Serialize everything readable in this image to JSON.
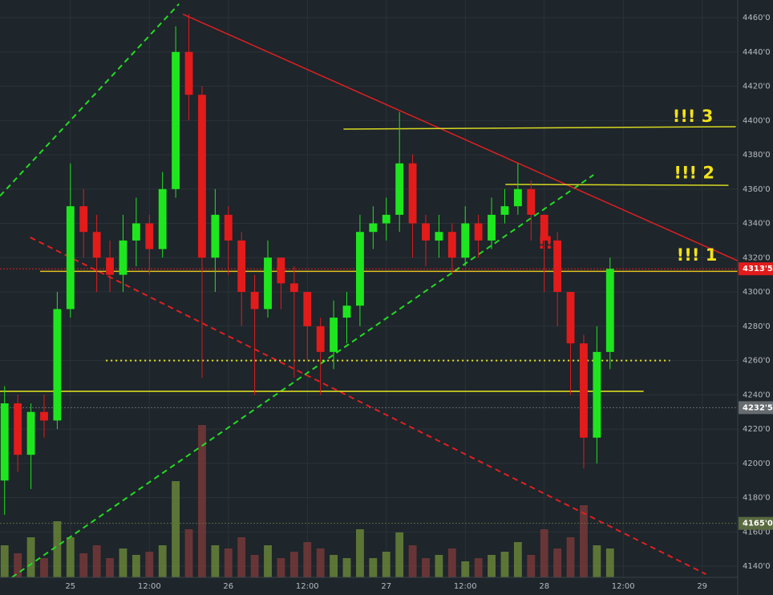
{
  "chart_data": {
    "type": "candlestick",
    "background": "#1e252b",
    "grid": true,
    "grid_color": "#2b3339",
    "up_color": "#1ee61e",
    "down_color": "#e31b1b",
    "volume_color_up": "#6b8a3a",
    "volume_color_down": "#7a3a3a",
    "xlim": [
      -10.7,
      101.4
    ],
    "ylim": [
      4133.5,
      4470.3
    ],
    "vlim": [
      0,
      100
    ],
    "xticks": [
      {
        "value": 0,
        "label": "25"
      },
      {
        "value": 12,
        "label": "12:00"
      },
      {
        "value": 24,
        "label": "26"
      },
      {
        "value": 36,
        "label": "12:00"
      },
      {
        "value": 48,
        "label": "27"
      },
      {
        "value": 60,
        "label": "12:00"
      },
      {
        "value": 72,
        "label": "28"
      },
      {
        "value": 84,
        "label": "12:00"
      },
      {
        "value": 96,
        "label": "29"
      }
    ],
    "yticks": [
      {
        "value": 4140,
        "label": "4140'0"
      },
      {
        "value": 4160,
        "label": "4160'0"
      },
      {
        "value": 4180,
        "label": "4180'0"
      },
      {
        "value": 4200,
        "label": "4200'0"
      },
      {
        "value": 4220,
        "label": "4220'0"
      },
      {
        "value": 4240,
        "label": "4240'0"
      },
      {
        "value": 4260,
        "label": "4260'0"
      },
      {
        "value": 4280,
        "label": "4280'0"
      },
      {
        "value": 4300,
        "label": "4300'0"
      },
      {
        "value": 4320,
        "label": "4320'0"
      },
      {
        "value": 4340,
        "label": "4340'0"
      },
      {
        "value": 4360,
        "label": "4360'0"
      },
      {
        "value": 4380,
        "label": "4380'0"
      },
      {
        "value": 4400,
        "label": "4400'0"
      },
      {
        "value": 4420,
        "label": "4420'0"
      },
      {
        "value": 4440,
        "label": "4440'0"
      },
      {
        "value": 4460,
        "label": "4460'0"
      }
    ],
    "x": [
      -10,
      -8,
      -6,
      -4,
      -2,
      0,
      2,
      4,
      6,
      8,
      10,
      12,
      14,
      16,
      18,
      20,
      22,
      24,
      26,
      28,
      30,
      32,
      34,
      36,
      38,
      40,
      42,
      44,
      46,
      48,
      50,
      52,
      54,
      56,
      58,
      60,
      62,
      64,
      66,
      68,
      70,
      72,
      74,
      76,
      78,
      80,
      82
    ],
    "open": [
      4190,
      4235,
      4205,
      4230,
      4225,
      4290,
      4350,
      4335,
      4320,
      4310,
      4330,
      4340,
      4325,
      4360,
      4440,
      4415,
      4320,
      4345,
      4330,
      4300,
      4290,
      4320,
      4305,
      4300,
      4280,
      4265,
      4285,
      4292,
      4335,
      4340,
      4345,
      4375,
      4340,
      4330,
      4335,
      4320,
      4340,
      4330,
      4345,
      4350,
      4360,
      4345,
      4330,
      4300,
      4270,
      4215,
      4265
    ],
    "high": [
      4245,
      4240,
      4235,
      4240,
      4300,
      4375,
      4360,
      4345,
      4330,
      4345,
      4355,
      4345,
      4370,
      4455,
      4462,
      4420,
      4360,
      4350,
      4335,
      4310,
      4330,
      4320,
      4315,
      4300,
      4285,
      4295,
      4300,
      4345,
      4350,
      4355,
      4405,
      4380,
      4345,
      4345,
      4340,
      4350,
      4345,
      4355,
      4360,
      4375,
      4365,
      4345,
      4335,
      4300,
      4275,
      4280,
      4320
    ],
    "low": [
      4170,
      4195,
      4185,
      4215,
      4220,
      4285,
      4320,
      4300,
      4300,
      4300,
      4315,
      4310,
      4320,
      4355,
      4400,
      4250,
      4300,
      4310,
      4280,
      4240,
      4285,
      4290,
      4250,
      4260,
      4240,
      4255,
      4270,
      4280,
      4325,
      4330,
      4335,
      4320,
      4315,
      4320,
      4310,
      4315,
      4320,
      4325,
      4340,
      4345,
      4330,
      4300,
      4280,
      4240,
      4197,
      4200,
      4255
    ],
    "close": [
      4235,
      4205,
      4230,
      4225,
      4290,
      4350,
      4335,
      4320,
      4310,
      4330,
      4340,
      4325,
      4360,
      4440,
      4415,
      4320,
      4345,
      4330,
      4300,
      4290,
      4320,
      4305,
      4300,
      4280,
      4265,
      4285,
      4292,
      4335,
      4340,
      4345,
      4375,
      4340,
      4330,
      4335,
      4320,
      4340,
      4330,
      4345,
      4350,
      4360,
      4345,
      4330,
      4300,
      4270,
      4215,
      4265,
      4313.5
    ],
    "volume": [
      20,
      15,
      25,
      12,
      35,
      25,
      15,
      20,
      12,
      18,
      14,
      16,
      20,
      60,
      30,
      95,
      20,
      18,
      25,
      14,
      20,
      12,
      16,
      22,
      18,
      14,
      12,
      30,
      12,
      16,
      28,
      20,
      12,
      14,
      18,
      10,
      12,
      14,
      16,
      22,
      14,
      30,
      18,
      25,
      45,
      20,
      18
    ],
    "lines": [
      {
        "x": [
          -10.7,
          16.5
        ],
        "y": [
          4356,
          4468
        ],
        "color": "#22dd22",
        "dash": "dashed"
      },
      {
        "x": [
          -8.9,
          79.5
        ],
        "y": [
          4133.5,
          4368.3
        ],
        "color": "#22dd22",
        "dash": "dashed"
      },
      {
        "x": [
          17.1,
          101.4
        ],
        "y": [
          4462,
          4318.2
        ],
        "color": "#e02020",
        "dash": "solid"
      },
      {
        "x": [
          -6.1,
          96.6
        ],
        "y": [
          4331.8,
          4135.3
        ],
        "color": "#e02020",
        "dash": "dashed"
      },
      {
        "x": [
          41.5,
          101.1
        ],
        "y": [
          4395,
          4396.4
        ],
        "color": "#d8d820",
        "dash": "solid"
      },
      {
        "x": [
          66.1,
          100
        ],
        "y": [
          4362.7,
          4362.2
        ],
        "color": "#d8d820",
        "dash": "solid"
      },
      {
        "x": [
          -4.6,
          101.4
        ],
        "y": [
          4312,
          4312
        ],
        "color": "#e8c020",
        "dash": "solid"
      },
      {
        "x": [
          5.4,
          91.1
        ],
        "y": [
          4260,
          4260
        ],
        "color": "#e8e820",
        "dash": "dotted"
      },
      {
        "x": [
          -10.7,
          87.1
        ],
        "y": [
          4242,
          4242
        ],
        "color": "#e8e820",
        "dash": "solid"
      }
    ],
    "price_labels": [
      {
        "value": 4313.5,
        "label": "4313'5",
        "color": "#e31b1b"
      },
      {
        "value": 4232.5,
        "label": "4232'5",
        "color": "#666c70"
      },
      {
        "value": 4165,
        "label": "4165'0",
        "color": "#5a6a40"
      }
    ],
    "annotations": [
      {
        "text": "!!! 3",
        "x": 91.5,
        "y": 4402,
        "color": "#f2e21a"
      },
      {
        "text": "!!! 2",
        "x": 91.7,
        "y": 4369,
        "color": "#f2e21a"
      },
      {
        "text": "!!! 1",
        "x": 92.1,
        "y": 4321,
        "color": "#f2e21a"
      },
      {
        "text": "!!",
        "x": 71,
        "y": 4328,
        "color": "#e31b1b"
      }
    ]
  }
}
